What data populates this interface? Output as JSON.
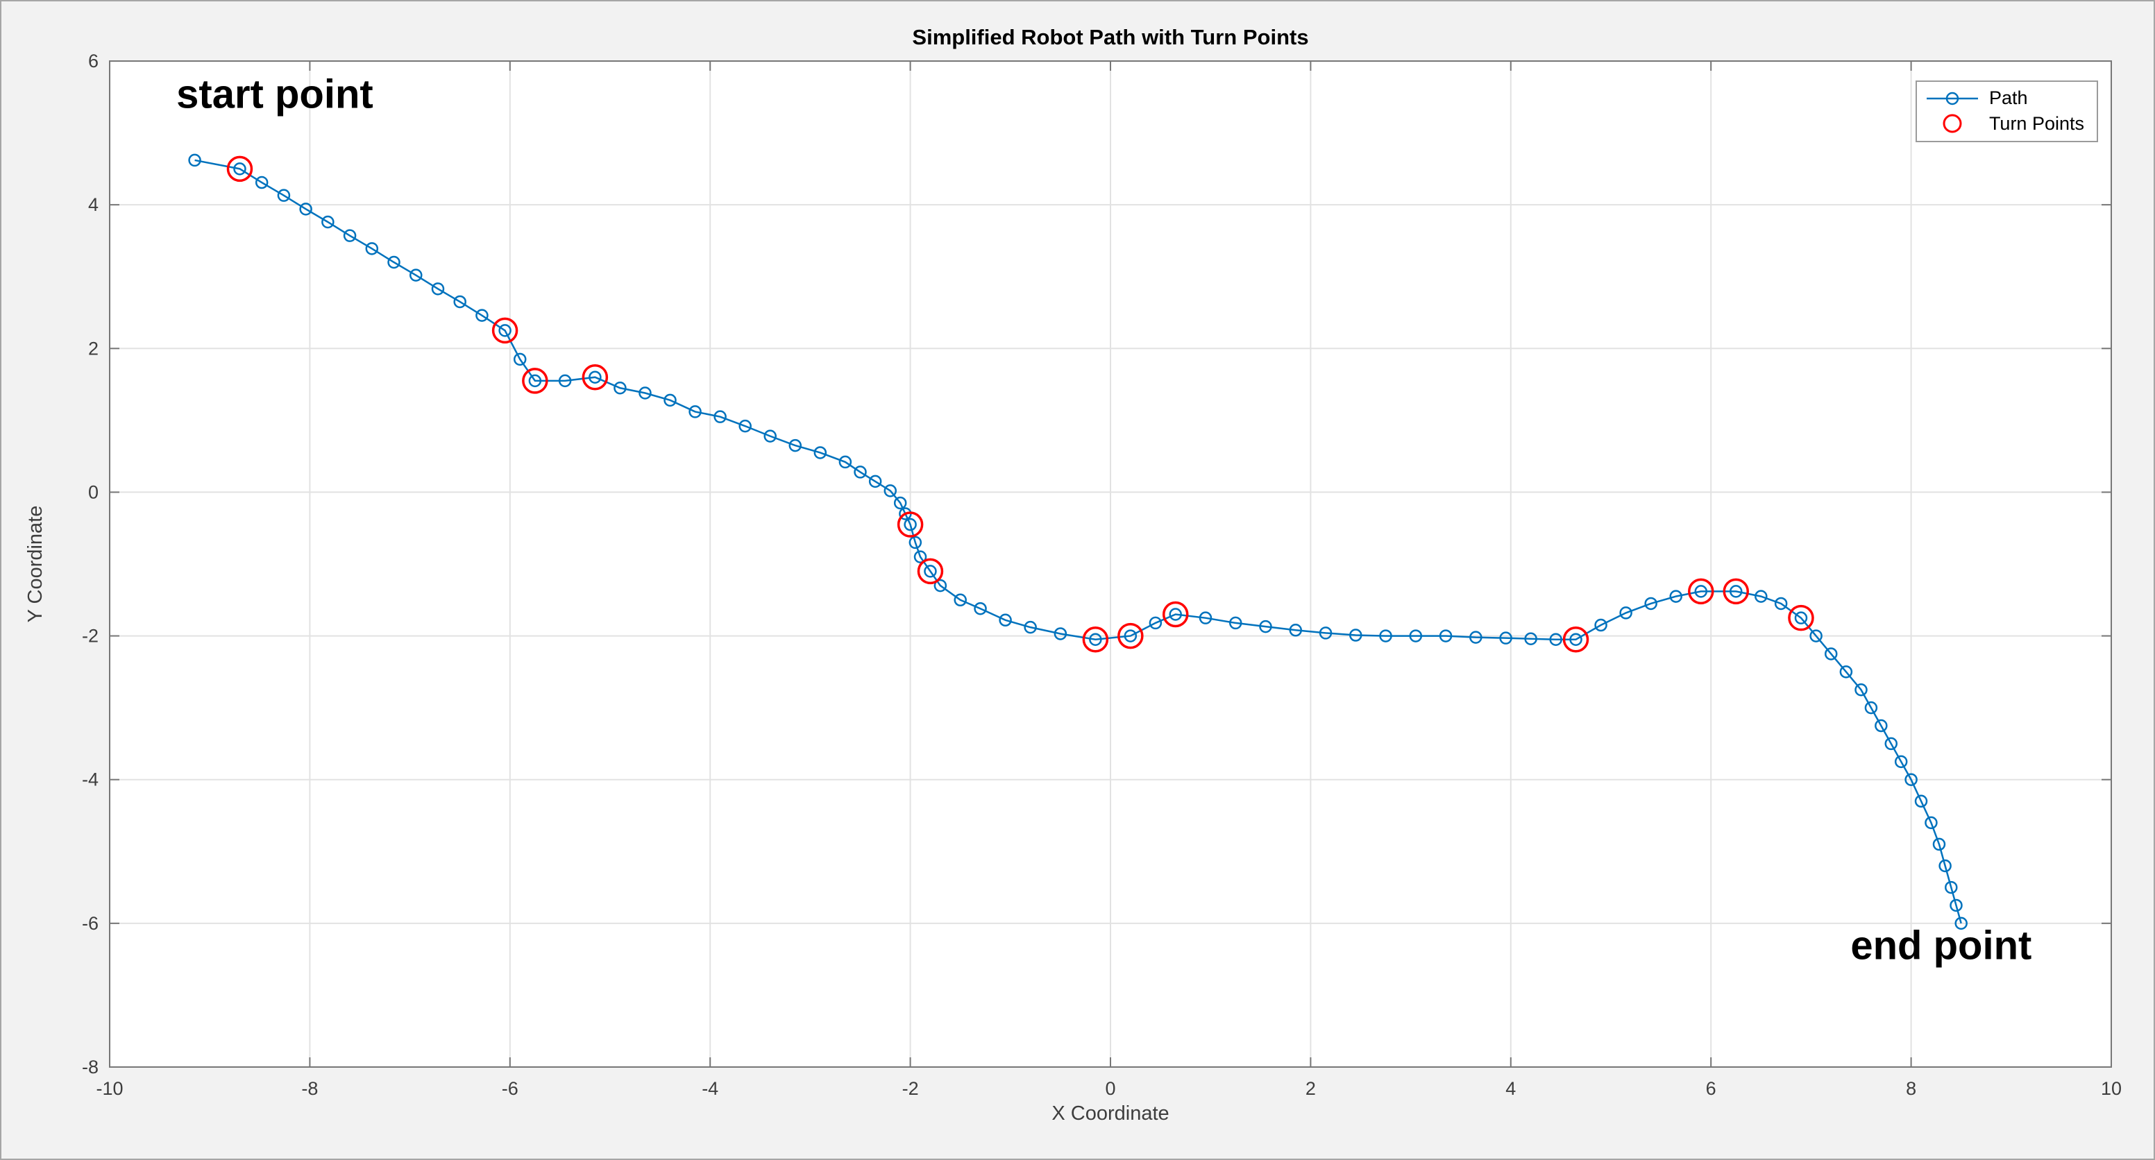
{
  "chart_data": {
    "type": "line",
    "title": "Simplified Robot Path with Turn Points",
    "xlabel": "X Coordinate",
    "ylabel": "Y Coordinate",
    "xlim": [
      -10,
      10
    ],
    "ylim": [
      -8,
      6
    ],
    "xticks": [
      -10,
      -8,
      -6,
      -4,
      -2,
      0,
      2,
      4,
      6,
      8,
      10
    ],
    "yticks": [
      -8,
      -6,
      -4,
      -2,
      0,
      2,
      4,
      6
    ],
    "grid": true,
    "legend_position": "top-right",
    "series": [
      {
        "name": "Path",
        "type": "line-with-markers",
        "color": "#0072BD",
        "marker": "o",
        "points": [
          [
            -9.15,
            4.62
          ],
          [
            -8.7,
            4.5
          ],
          [
            -8.48,
            4.31
          ],
          [
            -8.26,
            4.13
          ],
          [
            -8.04,
            3.94
          ],
          [
            -7.82,
            3.76
          ],
          [
            -7.6,
            3.57
          ],
          [
            -7.38,
            3.39
          ],
          [
            -7.16,
            3.2
          ],
          [
            -6.94,
            3.02
          ],
          [
            -6.72,
            2.83
          ],
          [
            -6.5,
            2.65
          ],
          [
            -6.28,
            2.46
          ],
          [
            -6.05,
            2.25
          ],
          [
            -5.9,
            1.85
          ],
          [
            -5.75,
            1.55
          ],
          [
            -5.45,
            1.55
          ],
          [
            -5.15,
            1.6
          ],
          [
            -4.9,
            1.45
          ],
          [
            -4.65,
            1.38
          ],
          [
            -4.4,
            1.28
          ],
          [
            -4.15,
            1.12
          ],
          [
            -3.9,
            1.05
          ],
          [
            -3.65,
            0.92
          ],
          [
            -3.4,
            0.78
          ],
          [
            -3.15,
            0.65
          ],
          [
            -2.9,
            0.55
          ],
          [
            -2.65,
            0.42
          ],
          [
            -2.5,
            0.28
          ],
          [
            -2.35,
            0.15
          ],
          [
            -2.2,
            0.02
          ],
          [
            -2.1,
            -0.15
          ],
          [
            -2.05,
            -0.3
          ],
          [
            -2.0,
            -0.45
          ],
          [
            -1.95,
            -0.7
          ],
          [
            -1.9,
            -0.9
          ],
          [
            -1.8,
            -1.1
          ],
          [
            -1.7,
            -1.3
          ],
          [
            -1.5,
            -1.5
          ],
          [
            -1.3,
            -1.62
          ],
          [
            -1.05,
            -1.78
          ],
          [
            -0.8,
            -1.88
          ],
          [
            -0.5,
            -1.97
          ],
          [
            -0.15,
            -2.05
          ],
          [
            0.2,
            -2.0
          ],
          [
            0.45,
            -1.82
          ],
          [
            0.65,
            -1.7
          ],
          [
            0.95,
            -1.75
          ],
          [
            1.25,
            -1.82
          ],
          [
            1.55,
            -1.87
          ],
          [
            1.85,
            -1.92
          ],
          [
            2.15,
            -1.96
          ],
          [
            2.45,
            -1.99
          ],
          [
            2.75,
            -2.0
          ],
          [
            3.05,
            -2.0
          ],
          [
            3.35,
            -2.0
          ],
          [
            3.65,
            -2.02
          ],
          [
            3.95,
            -2.03
          ],
          [
            4.2,
            -2.04
          ],
          [
            4.45,
            -2.05
          ],
          [
            4.65,
            -2.05
          ],
          [
            4.9,
            -1.85
          ],
          [
            5.15,
            -1.68
          ],
          [
            5.4,
            -1.55
          ],
          [
            5.65,
            -1.45
          ],
          [
            5.9,
            -1.38
          ],
          [
            6.25,
            -1.38
          ],
          [
            6.5,
            -1.45
          ],
          [
            6.7,
            -1.55
          ],
          [
            6.9,
            -1.75
          ],
          [
            7.05,
            -2.0
          ],
          [
            7.2,
            -2.25
          ],
          [
            7.35,
            -2.5
          ],
          [
            7.5,
            -2.75
          ],
          [
            7.6,
            -3.0
          ],
          [
            7.7,
            -3.25
          ],
          [
            7.8,
            -3.5
          ],
          [
            7.9,
            -3.75
          ],
          [
            8.0,
            -4.0
          ],
          [
            8.1,
            -4.3
          ],
          [
            8.2,
            -4.6
          ],
          [
            8.28,
            -4.9
          ],
          [
            8.34,
            -5.2
          ],
          [
            8.4,
            -5.5
          ],
          [
            8.45,
            -5.75
          ],
          [
            8.5,
            -6.0
          ]
        ]
      },
      {
        "name": "Turn Points",
        "type": "scatter",
        "color": "#FF0000",
        "marker": "o",
        "points": [
          [
            -8.7,
            4.5
          ],
          [
            -6.05,
            2.25
          ],
          [
            -5.75,
            1.55
          ],
          [
            -5.15,
            1.6
          ],
          [
            -2.0,
            -0.45
          ],
          [
            -1.8,
            -1.1
          ],
          [
            -0.15,
            -2.05
          ],
          [
            0.2,
            -2.0
          ],
          [
            0.65,
            -1.7
          ],
          [
            4.65,
            -2.05
          ],
          [
            5.9,
            -1.38
          ],
          [
            6.25,
            -1.38
          ],
          [
            6.9,
            -1.75
          ]
        ]
      }
    ],
    "annotations": [
      {
        "text": "start point",
        "x": -8.35,
        "y": 5.35
      },
      {
        "text": "end point",
        "x": 8.3,
        "y": -6.5
      }
    ]
  },
  "colors": {
    "figure_bg": "#f2f2f2",
    "plot_bg": "#ffffff",
    "grid": "#e2e2e2",
    "axis": "#777777",
    "tick_label": "#3d3d3d",
    "path": "#0072BD",
    "turn_points": "#FF0000"
  }
}
